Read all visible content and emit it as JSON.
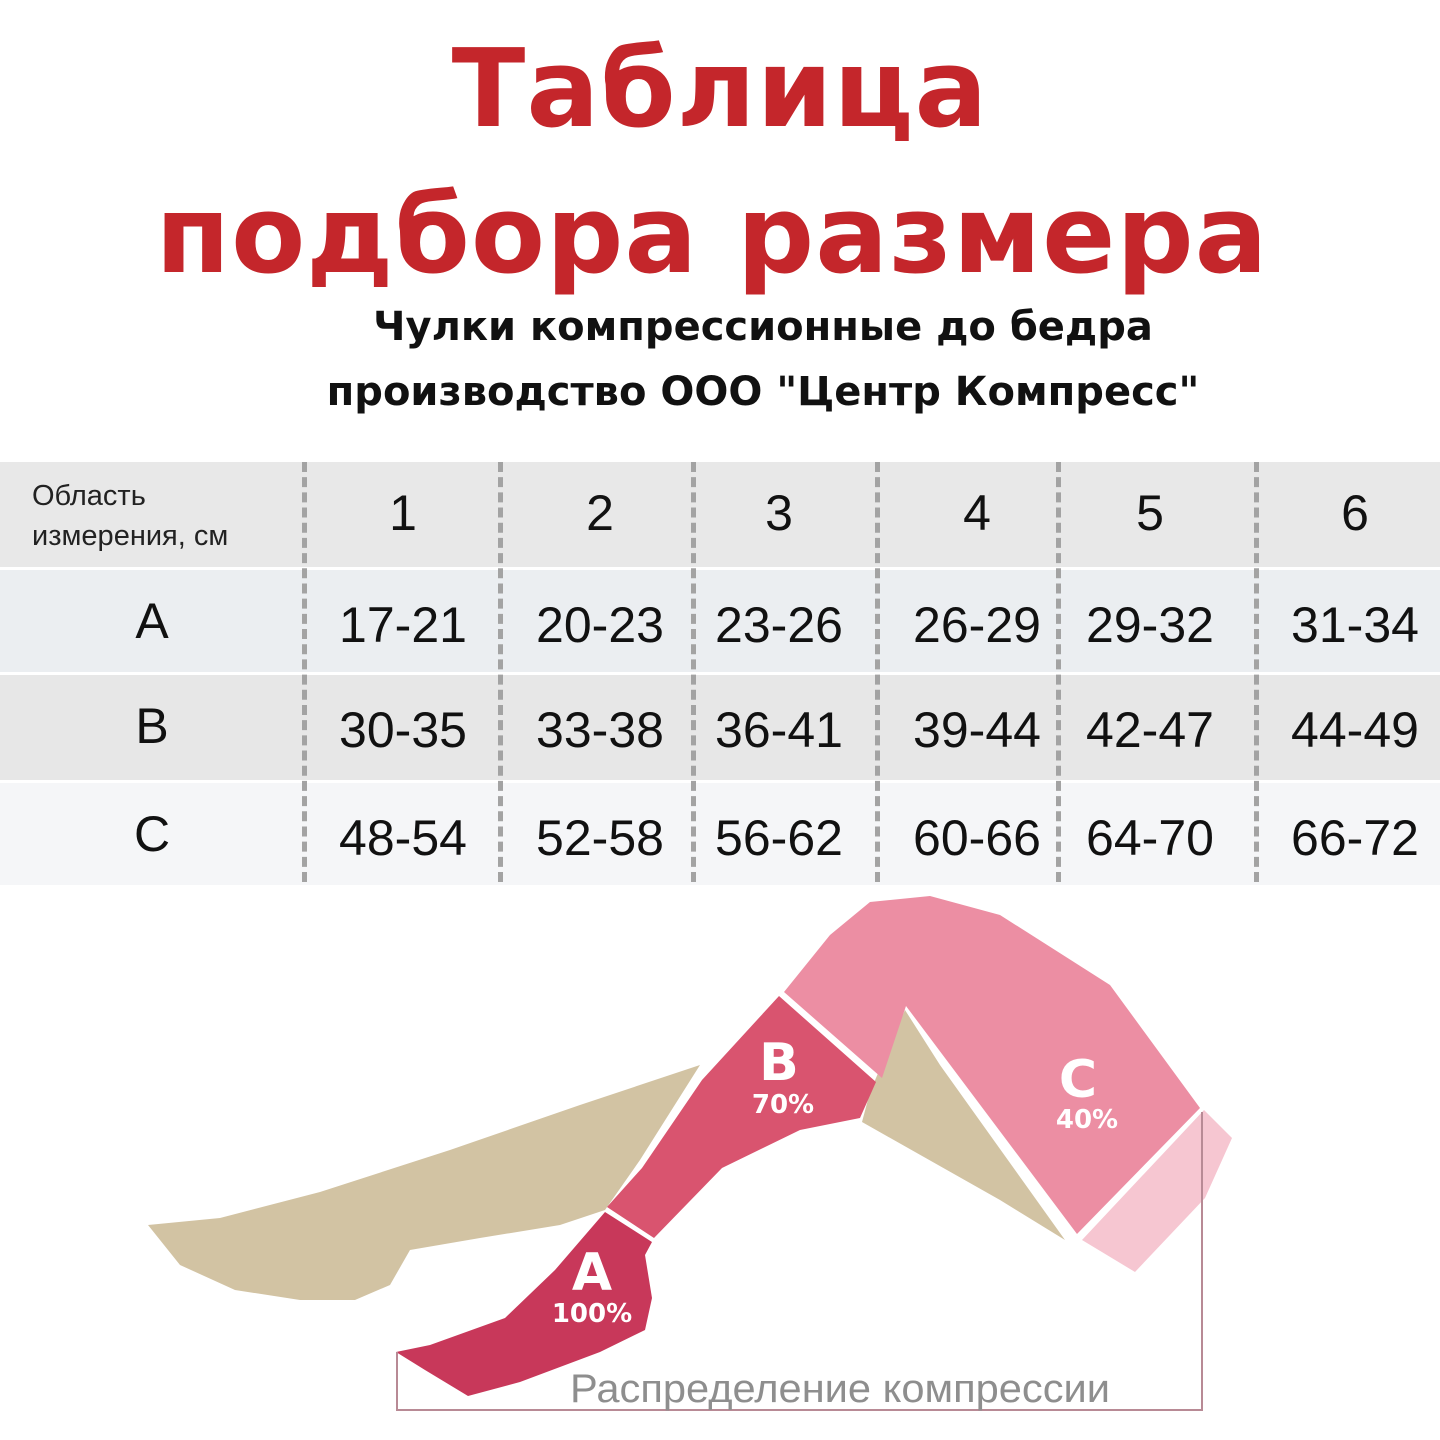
{
  "title": {
    "line1": "Таблица",
    "line2": "подбора размера"
  },
  "subtitle": {
    "line1": "Чулки компрессионные до бедра",
    "line2": "производство ООО \"Центр Компресс\""
  },
  "table": {
    "header_label_line1": "Область",
    "header_label_line2": "измерения, см",
    "sizes": [
      "1",
      "2",
      "3",
      "4",
      "5",
      "6"
    ],
    "rows": [
      {
        "label": "A",
        "values": [
          "17-21",
          "20-23",
          "23-26",
          "26-29",
          "29-32",
          "31-34"
        ]
      },
      {
        "label": "B",
        "values": [
          "30-35",
          "33-38",
          "36-41",
          "39-44",
          "42-47",
          "44-49"
        ]
      },
      {
        "label": "C",
        "values": [
          "48-54",
          "52-58",
          "56-62",
          "60-66",
          "64-70",
          "66-72"
        ]
      }
    ]
  },
  "diagram": {
    "zones": [
      {
        "label": "A",
        "percent": "100%",
        "color": "#c8385a"
      },
      {
        "label": "B",
        "percent": "70%",
        "color": "#d9546f"
      },
      {
        "label": "C",
        "percent": "40%",
        "color": "#ec8ea3"
      }
    ],
    "skin_color": "#d2c3a3",
    "caption": "Распределение компрессии"
  },
  "colors": {
    "title": "#c4262b"
  }
}
